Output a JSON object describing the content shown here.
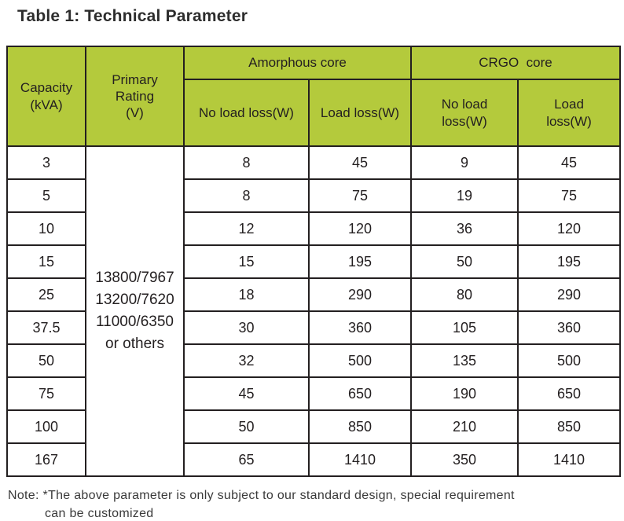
{
  "page": {
    "title": "Table 1: Technical Parameter"
  },
  "colors": {
    "header_green": "#b4ca3c",
    "border": "#231f20",
    "text": "#231f20"
  },
  "table": {
    "headers": {
      "capacity": "Capacity\n(kVA)",
      "primary_rating": "Primary\nRating\n(V)",
      "amorphous_group": "Amorphous core",
      "crgo_group": "CRGO  core",
      "amorphous_no_load": "No load loss(W)",
      "amorphous_load": "Load loss(W)",
      "crgo_no_load": "No load\nloss(W)",
      "crgo_load": "Load\nloss(W)"
    },
    "primary_rating_value": "13800/7967\n13200/7620\n11000/6350\nor others",
    "rows": [
      {
        "capacity": "3",
        "amorphous_no_load": "8",
        "amorphous_load": "45",
        "crgo_no_load": "9",
        "crgo_load": "45"
      },
      {
        "capacity": "5",
        "amorphous_no_load": "8",
        "amorphous_load": "75",
        "crgo_no_load": "19",
        "crgo_load": "75"
      },
      {
        "capacity": "10",
        "amorphous_no_load": "12",
        "amorphous_load": "120",
        "crgo_no_load": "36",
        "crgo_load": "120"
      },
      {
        "capacity": "15",
        "amorphous_no_load": "15",
        "amorphous_load": "195",
        "crgo_no_load": "50",
        "crgo_load": "195"
      },
      {
        "capacity": "25",
        "amorphous_no_load": "18",
        "amorphous_load": "290",
        "crgo_no_load": "80",
        "crgo_load": "290"
      },
      {
        "capacity": "37.5",
        "amorphous_no_load": "30",
        "amorphous_load": "360",
        "crgo_no_load": "105",
        "crgo_load": "360"
      },
      {
        "capacity": "50",
        "amorphous_no_load": "32",
        "amorphous_load": "500",
        "crgo_no_load": "135",
        "crgo_load": "500"
      },
      {
        "capacity": "75",
        "amorphous_no_load": "45",
        "amorphous_load": "650",
        "crgo_no_load": "190",
        "crgo_load": "650"
      },
      {
        "capacity": "100",
        "amorphous_no_load": "50",
        "amorphous_load": "850",
        "crgo_no_load": "210",
        "crgo_load": "850"
      },
      {
        "capacity": "167",
        "amorphous_no_load": "65",
        "amorphous_load": "1410",
        "crgo_no_load": "350",
        "crgo_load": "1410"
      }
    ]
  },
  "note": {
    "line1": "Note: *The above parameter is only subject to our standard design, special requirement",
    "line2": "can be customized"
  }
}
